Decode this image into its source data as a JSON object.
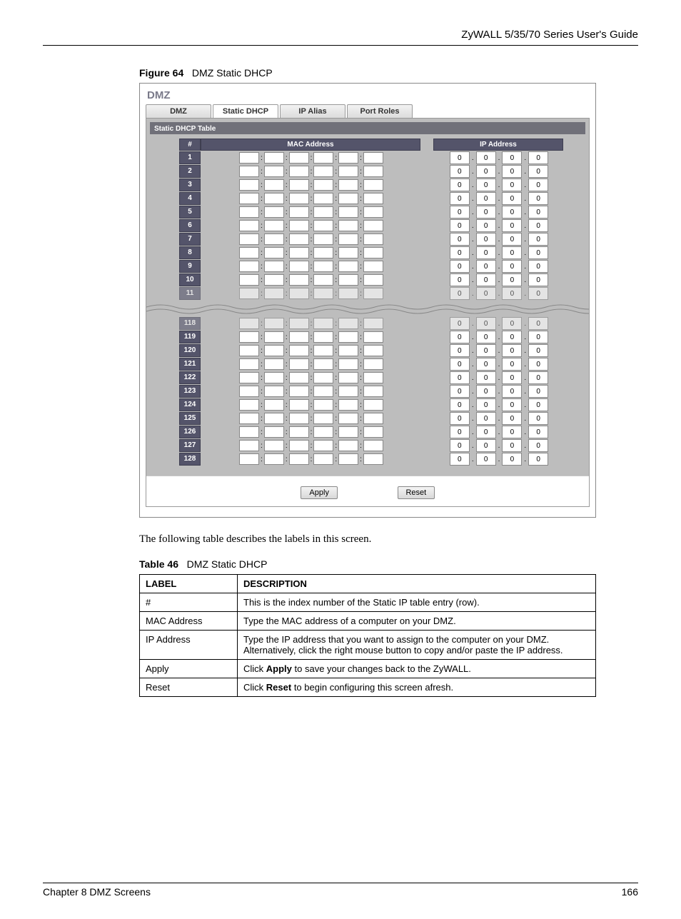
{
  "header": {
    "guide": "ZyWALL 5/35/70 Series User's Guide"
  },
  "figure": {
    "label": "Figure 64",
    "title": "DMZ Static DHCP"
  },
  "ui": {
    "section_title": "DMZ",
    "tabs": {
      "dmz": "DMZ",
      "static_dhcp": "Static DHCP",
      "ip_alias": "IP Alias",
      "port_roles": "Port Roles"
    },
    "panel_title": "Static DHCP Table",
    "headers": {
      "index": "#",
      "mac": "MAC Address",
      "ip": "IP Address"
    },
    "top_rows": [
      "1",
      "2",
      "3",
      "4",
      "5",
      "6",
      "7",
      "8",
      "9",
      "10",
      "11"
    ],
    "bottom_rows": [
      "118",
      "119",
      "120",
      "121",
      "122",
      "123",
      "124",
      "125",
      "126",
      "127",
      "128"
    ],
    "ip_value": "0",
    "buttons": {
      "apply": "Apply",
      "reset": "Reset"
    }
  },
  "intro": "The following table describes the labels in this screen.",
  "table": {
    "label": "Table 46",
    "title": "DMZ Static DHCP",
    "head": {
      "label": "LABEL",
      "desc": "DESCRIPTION"
    },
    "rows": {
      "r1": {
        "label": "#",
        "desc": "This is the index number of the Static IP table entry (row)."
      },
      "r2": {
        "label": "MAC Address",
        "desc": "Type the MAC address of a computer on your DMZ."
      },
      "r3": {
        "label": "IP Address",
        "desc": "Type the IP address that you want to assign to the computer on your DMZ. Alternatively, click the right mouse button to copy and/or paste the IP address."
      },
      "r4": {
        "label": "Apply",
        "pre": "Click ",
        "bold": "Apply",
        "post": " to save your changes back to the ZyWALL."
      },
      "r5": {
        "label": "Reset",
        "pre": "Click ",
        "bold": "Reset",
        "post": " to begin configuring this screen afresh."
      }
    }
  },
  "footer": {
    "chapter": "Chapter 8 DMZ Screens",
    "page": "166"
  }
}
